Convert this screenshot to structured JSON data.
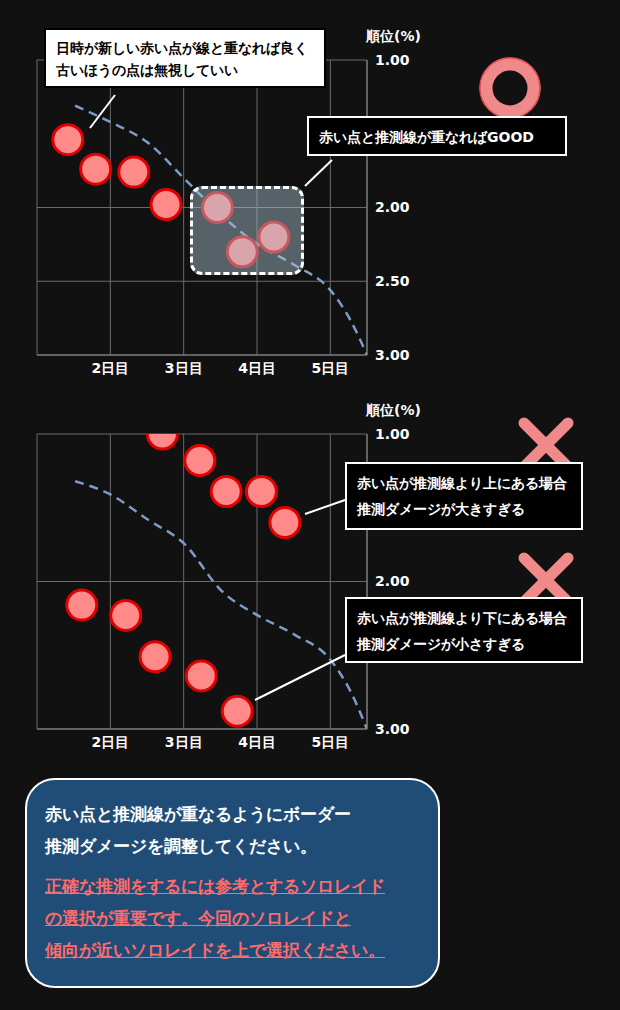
{
  "chart_data": [
    {
      "type": "scatter",
      "ylabel": "順位(%)",
      "xlim": [
        1,
        5.5
      ],
      "xticks": [
        {
          "value": 2,
          "label": "2日目"
        },
        {
          "value": 3,
          "label": "3日目"
        },
        {
          "value": 4,
          "label": "4日目"
        },
        {
          "value": 5,
          "label": "5日目"
        }
      ],
      "ylim": [
        3,
        1
      ],
      "yticks": [
        {
          "value": 1,
          "label": "1.00"
        },
        {
          "value": 2,
          "label": "2.00"
        },
        {
          "value": 2.5,
          "label": "2.50"
        },
        {
          "value": 3,
          "label": "3.00"
        }
      ],
      "grid": true,
      "annotations": [
        {
          "text": "日時が新しい赤い点が線と重なれば良く\n古いほうの点は無視していい"
        },
        {
          "text": "赤い点と推測線が重なればGOOD"
        }
      ],
      "series": [
        {
          "type": "line",
          "line_style": "dashed",
          "color": "#7f9cc9",
          "x": [
            1.52,
            2.0,
            2.51,
            3.02,
            3.51,
            4.01,
            4.51,
            5.0,
            5.27,
            5.5
          ],
          "values": [
            1.31,
            1.42,
            1.56,
            1.81,
            2.05,
            2.25,
            2.39,
            2.56,
            2.76,
            3.0
          ]
        },
        {
          "type": "scatter",
          "marker": "circle",
          "color": "#ff8a8a",
          "x": [
            1.42,
            1.8,
            2.32,
            2.76,
            3.46,
            3.8,
            4.23
          ],
          "values": [
            1.54,
            1.74,
            1.76,
            1.98,
            2.0,
            2.3,
            2.2
          ]
        }
      ]
    },
    {
      "type": "scatter",
      "ylabel": "順位(%)",
      "xlim": [
        1,
        5.5
      ],
      "xticks": [
        {
          "value": 2,
          "label": "2日目"
        },
        {
          "value": 3,
          "label": "3日目"
        },
        {
          "value": 4,
          "label": "4日目"
        },
        {
          "value": 5,
          "label": "5日目"
        }
      ],
      "ylim": [
        3,
        1
      ],
      "yticks": [
        {
          "value": 1,
          "label": "1.00"
        },
        {
          "value": 2,
          "label": "2.00"
        },
        {
          "value": 3,
          "label": "3.00"
        }
      ],
      "grid": true,
      "annotations": [
        {
          "text": "赤い点が推測線より上にある場合\n推測ダメージが大きすぎる"
        },
        {
          "text": "赤い点が推測線より下にある場合\n推測ダメージが小さすぎる"
        }
      ],
      "series": [
        {
          "type": "line",
          "line_style": "dashed",
          "color": "#7f9cc9",
          "x": [
            1.52,
            2.0,
            2.51,
            3.02,
            3.51,
            4.01,
            4.51,
            5.0,
            5.27,
            5.5
          ],
          "values": [
            1.32,
            1.41,
            1.58,
            1.75,
            2.06,
            2.23,
            2.36,
            2.53,
            2.74,
            3.0
          ]
        },
        {
          "type": "scatter",
          "marker": "circle",
          "color": "#ff8a8a",
          "x": [
            2.71,
            3.22,
            3.58,
            4.06,
            4.38,
            1.61,
            2.21,
            2.61,
            3.24,
            3.73
          ],
          "values": [
            1.0,
            1.18,
            1.39,
            1.39,
            1.6,
            2.16,
            2.23,
            2.51,
            2.64,
            2.88
          ]
        }
      ]
    }
  ],
  "message": {
    "text": "赤い点と推測線が重なるようにボーダー\n推測ダメージを調整してください。",
    "highlight": "正確な推測をするには参考とするソロレイド\nの選択が重要です。今回のソロレイドと\n傾向が近いソロレイドを上で選択ください。"
  }
}
